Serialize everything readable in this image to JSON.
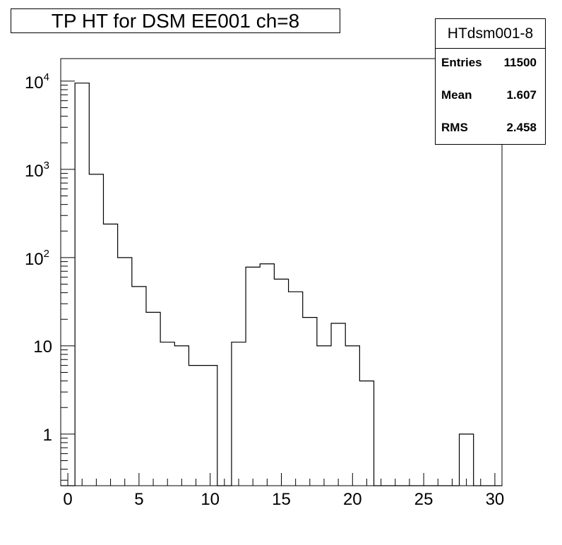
{
  "title": "TP HT for DSM EE001 ch=8",
  "stats": {
    "name": "HTdsm001-8",
    "rows": [
      {
        "label": "Entries",
        "value": "11500"
      },
      {
        "label": "Mean",
        "value": "1.607"
      },
      {
        "label": "RMS",
        "value": "2.458"
      }
    ]
  },
  "chart_data": {
    "type": "histogram",
    "title": "TP HT for DSM EE001 ch=8",
    "xlabel": "",
    "ylabel": "",
    "xlim": [
      -0.5,
      30.5
    ],
    "ylim": [
      0.26,
      18000
    ],
    "log_y": true,
    "grid": false,
    "bin_width": 1,
    "bins": [
      {
        "x": 0,
        "count": 0
      },
      {
        "x": 1,
        "count": 9500
      },
      {
        "x": 2,
        "count": 880
      },
      {
        "x": 3,
        "count": 240
      },
      {
        "x": 4,
        "count": 100
      },
      {
        "x": 5,
        "count": 47
      },
      {
        "x": 6,
        "count": 24
      },
      {
        "x": 7,
        "count": 11
      },
      {
        "x": 8,
        "count": 10
      },
      {
        "x": 9,
        "count": 6
      },
      {
        "x": 10,
        "count": 6
      },
      {
        "x": 11,
        "count": 0
      },
      {
        "x": 12,
        "count": 11
      },
      {
        "x": 13,
        "count": 78
      },
      {
        "x": 14,
        "count": 85
      },
      {
        "x": 15,
        "count": 57
      },
      {
        "x": 16,
        "count": 41
      },
      {
        "x": 17,
        "count": 21
      },
      {
        "x": 18,
        "count": 10
      },
      {
        "x": 19,
        "count": 18
      },
      {
        "x": 20,
        "count": 10
      },
      {
        "x": 21,
        "count": 4
      },
      {
        "x": 22,
        "count": 0
      },
      {
        "x": 23,
        "count": 0
      },
      {
        "x": 24,
        "count": 0
      },
      {
        "x": 25,
        "count": 0
      },
      {
        "x": 26,
        "count": 0
      },
      {
        "x": 27,
        "count": 0
      },
      {
        "x": 28,
        "count": 1
      },
      {
        "x": 29,
        "count": 0
      },
      {
        "x": 30,
        "count": 0
      }
    ],
    "x_ticks": [
      "0",
      "5",
      "10",
      "15",
      "20",
      "25",
      "30"
    ],
    "y_ticks": [
      {
        "value": 1,
        "label": "1"
      },
      {
        "value": 10,
        "label": "10"
      },
      {
        "value": 100,
        "base": "10",
        "exp": "2"
      },
      {
        "value": 1000,
        "base": "10",
        "exp": "3"
      },
      {
        "value": 10000,
        "base": "10",
        "exp": "4"
      }
    ]
  }
}
